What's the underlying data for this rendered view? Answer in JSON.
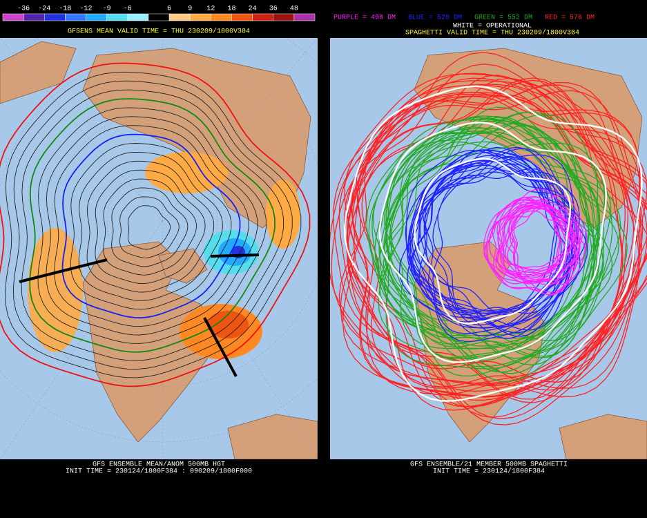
{
  "left_panel": {
    "colorbar": {
      "labels": [
        "-36",
        "-24",
        "-18",
        "-12",
        "-9",
        "-6",
        "6",
        "9",
        "12",
        "18",
        "24",
        "36",
        "48"
      ],
      "colors": [
        "#cc44cc",
        "#5522aa",
        "#2233dd",
        "#3377ff",
        "#22aaff",
        "#55ddee",
        "#99eeff",
        "#000000",
        "#ffcc88",
        "#ffaa44",
        "#ff8822",
        "#ee5511",
        "#cc2211",
        "#991111",
        "#aa33aa"
      ]
    },
    "title": "GFSENS MEAN VALID TIME = THU 230209/1800V384",
    "footer": [
      "GFS ENSEMBLE MEAN/ANOM 500MB HGT",
      "INIT TIME = 230124/1800F384 : 090209/1800F000"
    ]
  },
  "right_panel": {
    "legend": [
      {
        "label": "PURPLE = 498 DM",
        "color": "#ff22ff"
      },
      {
        "label": "BLUE = 528 DM",
        "color": "#2222ff"
      },
      {
        "label": "GREEN = 552 DM",
        "color": "#22aa22"
      },
      {
        "label": "RED = 576 DM",
        "color": "#ff2222"
      }
    ],
    "operational": "WHITE = OPERATIONAL",
    "title": "SPAGHETTI VALID TIME = THU 230209/1800V384",
    "footer": [
      "GFS ENSEMBLE/21 MEMBER 500MB SPAGHETTI",
      "INIT TIME = 230124/1800F384"
    ]
  }
}
